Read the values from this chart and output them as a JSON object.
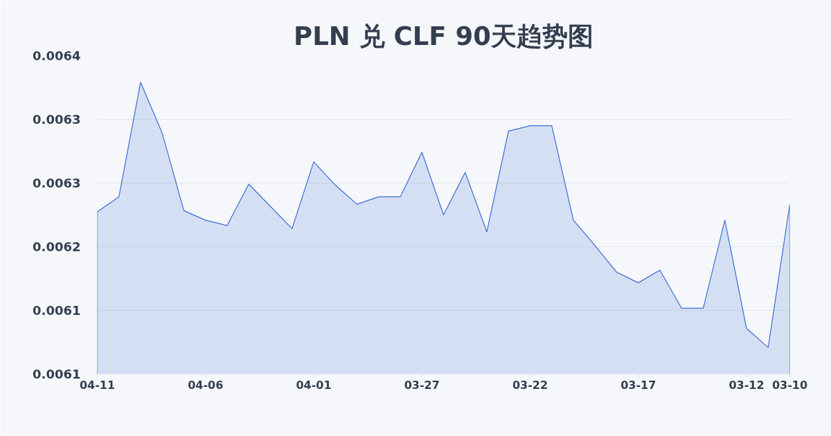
{
  "chart_data": {
    "type": "area",
    "title": "PLN 兑 CLF 90天趋势图",
    "categories": [
      "04-11",
      null,
      null,
      null,
      null,
      "04-06",
      null,
      null,
      null,
      null,
      "04-01",
      null,
      null,
      null,
      null,
      "03-27",
      null,
      null,
      null,
      null,
      "03-22",
      null,
      null,
      null,
      null,
      "03-17",
      null,
      null,
      null,
      null,
      "03-12",
      null,
      "03-10"
    ],
    "series": [
      {
        "color": "#3b6cd4",
        "values": [
          0.006233,
          0.006247,
          0.006355,
          0.006307,
          0.006234,
          0.006225,
          0.00622,
          0.006259,
          0.006238,
          0.006217,
          0.00628,
          0.006258,
          0.00624,
          0.006247,
          0.006247,
          0.006289,
          0.00623,
          0.00627,
          0.006214,
          0.006309,
          0.006314,
          0.006314,
          0.006225,
          0.006201,
          0.006176,
          0.006166,
          0.006178,
          0.006142,
          0.006142,
          0.006225,
          0.006123,
          0.006105,
          0.00624
        ]
      }
    ],
    "ylim": [
      0.00608,
      0.00638
    ],
    "yticks": [
      {
        "value": 0.00608,
        "label": "0.0061"
      },
      {
        "value": 0.00614,
        "label": "0.0061"
      },
      {
        "value": 0.0062,
        "label": "0.0062"
      },
      {
        "value": 0.00626,
        "label": "0.0063"
      },
      {
        "value": 0.00632,
        "label": "0.0063"
      },
      {
        "value": 0.00638,
        "label": "0.0064"
      }
    ],
    "grid": "y"
  }
}
